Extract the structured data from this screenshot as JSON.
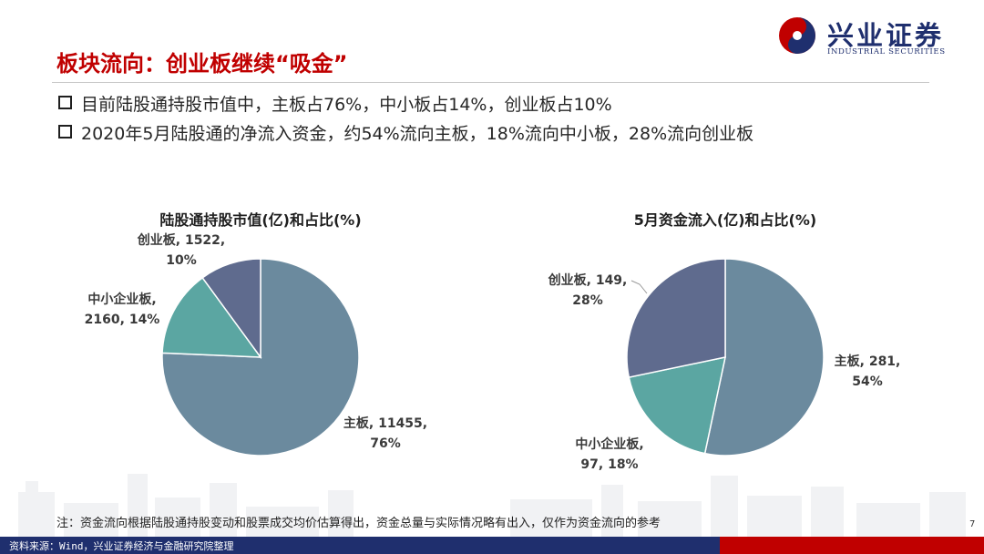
{
  "logo": {
    "name_cn": "兴业证券",
    "name_en": "INDUSTRIAL SECURITIES"
  },
  "title": "板块流向：创业板继续“吸金”",
  "bullets": [
    "目前陆股通持股市值中，主板占76%，中小板占14%，创业板占10%",
    "2020年5月陆股通的净流入资金，约54%流向主板，18%流向中小板，28%流向创业板"
  ],
  "chart_data": [
    {
      "type": "pie",
      "title": "陆股通持股市值(亿)和占比(%)",
      "slices": [
        {
          "name": "主板",
          "value": 11455,
          "percent": "76%",
          "label_line1": "主板, 11455,",
          "label_line2": "76%",
          "color": "#6b8a9e"
        },
        {
          "name": "中小企业板",
          "value": 2160,
          "percent": "14%",
          "label_line1": "中小企业板,",
          "label_line2": "2160, 14%",
          "color": "#5ba6a2"
        },
        {
          "name": "创业板",
          "value": 1522,
          "percent": "10%",
          "label_line1": "创业板, 1522,",
          "label_line2": "10%",
          "color": "#5f6b8e"
        }
      ]
    },
    {
      "type": "pie",
      "title": "5月资金流入(亿)和占比(%)",
      "slices": [
        {
          "name": "主板",
          "value": 281,
          "percent": "54%",
          "label_line1": "主板, 281,",
          "label_line2": "54%",
          "color": "#6b8a9e"
        },
        {
          "name": "中小企业板",
          "value": 97,
          "percent": "18%",
          "label_line1": "中小企业板,",
          "label_line2": "97, 18%",
          "color": "#5ba6a2"
        },
        {
          "name": "创业板",
          "value": 149,
          "percent": "28%",
          "label_line1": "创业板, 149,",
          "label_line2": "28%",
          "color": "#5f6b8e"
        }
      ]
    }
  ],
  "note": "注：资金流向根据陆股通持股变动和股票成交均价估算得出，资金总量与实际情况略有出入，仅作为资金流向的参考",
  "page_number": "7",
  "footer": "资料来源：Wind，兴业证券经济与金融研究院整理"
}
